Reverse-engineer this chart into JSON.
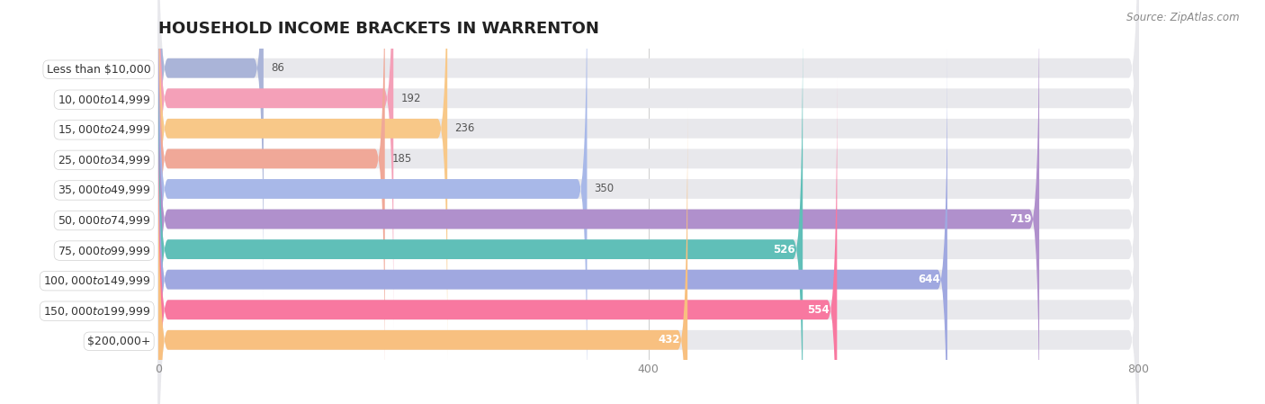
{
  "title": "HOUSEHOLD INCOME BRACKETS IN WARRENTON",
  "source": "Source: ZipAtlas.com",
  "categories": [
    "Less than $10,000",
    "$10,000 to $14,999",
    "$15,000 to $24,999",
    "$25,000 to $34,999",
    "$35,000 to $49,999",
    "$50,000 to $74,999",
    "$75,000 to $99,999",
    "$100,000 to $149,999",
    "$150,000 to $199,999",
    "$200,000+"
  ],
  "values": [
    86,
    192,
    236,
    185,
    350,
    719,
    526,
    644,
    554,
    432
  ],
  "bar_colors": [
    "#aab4d8",
    "#f4a0b8",
    "#f8c888",
    "#f0a898",
    "#a8b8e8",
    "#b090cc",
    "#60bfb8",
    "#a0a8e0",
    "#f878a0",
    "#f8c080"
  ],
  "bar_bg_color": "#e8e8ec",
  "row_bg_color": "#f2f2f5",
  "xlim": [
    0,
    800
  ],
  "xticks": [
    0,
    400,
    800
  ],
  "title_fontsize": 13,
  "label_fontsize": 9,
  "value_fontsize": 8.5,
  "source_fontsize": 8.5,
  "value_threshold": 400
}
